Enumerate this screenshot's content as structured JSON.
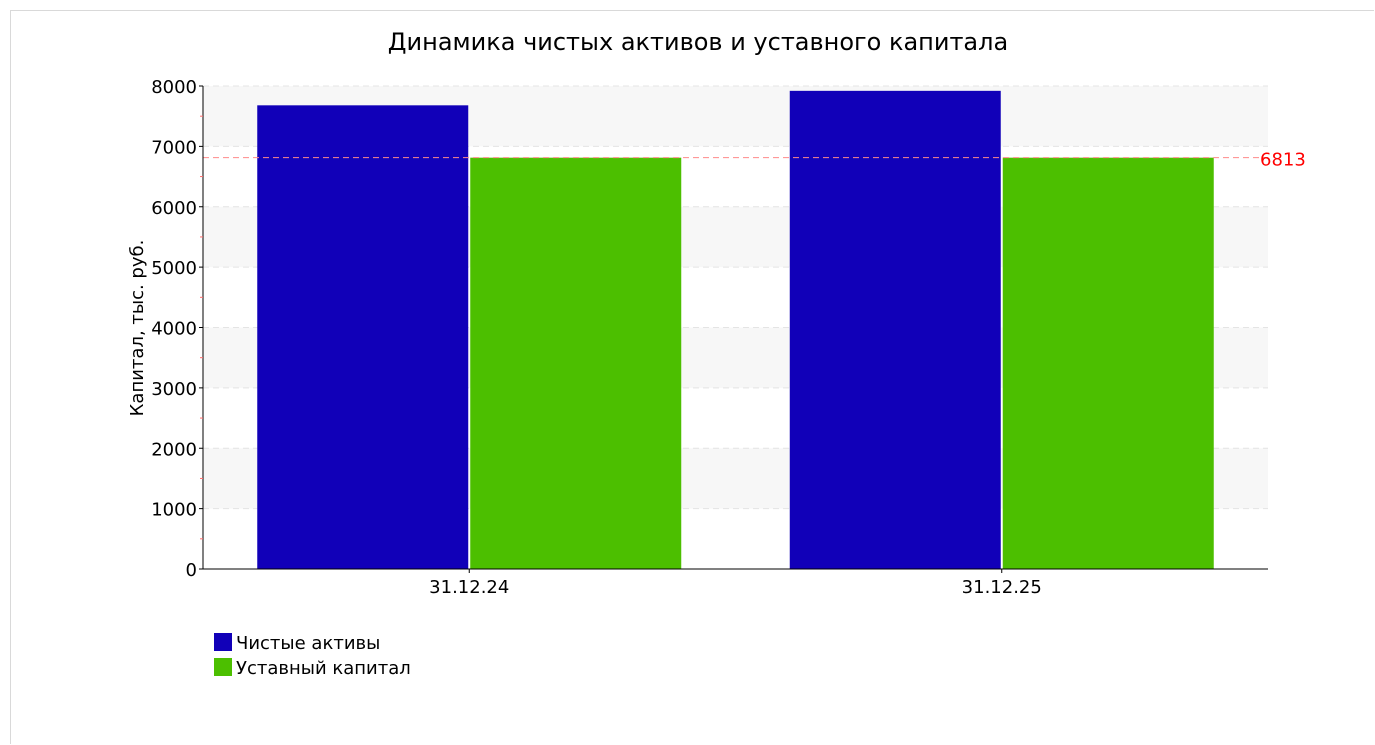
{
  "chart_data": {
    "type": "bar",
    "title": "Динамика чистых активов и уставного капитала",
    "ylabel": "Капитал, тыс. руб.",
    "xlabel": "",
    "categories": [
      "31.12.24",
      "31.12.25"
    ],
    "series": [
      {
        "name": "Чистые активы",
        "color": "#1100b8",
        "values": [
          7680,
          7920
        ]
      },
      {
        "name": "Уставный капитал",
        "color": "#4cbf00",
        "values": [
          6813,
          6813
        ]
      }
    ],
    "ylim": [
      0,
      8000
    ],
    "yticks": [
      "0",
      "1000",
      "2000",
      "3000",
      "4000",
      "5000",
      "6000",
      "7000",
      "8000"
    ],
    "reference_line": {
      "value": 6813,
      "label": "6813",
      "color": "#ff0000"
    },
    "grid": true,
    "legend_position": "bottom-left"
  }
}
